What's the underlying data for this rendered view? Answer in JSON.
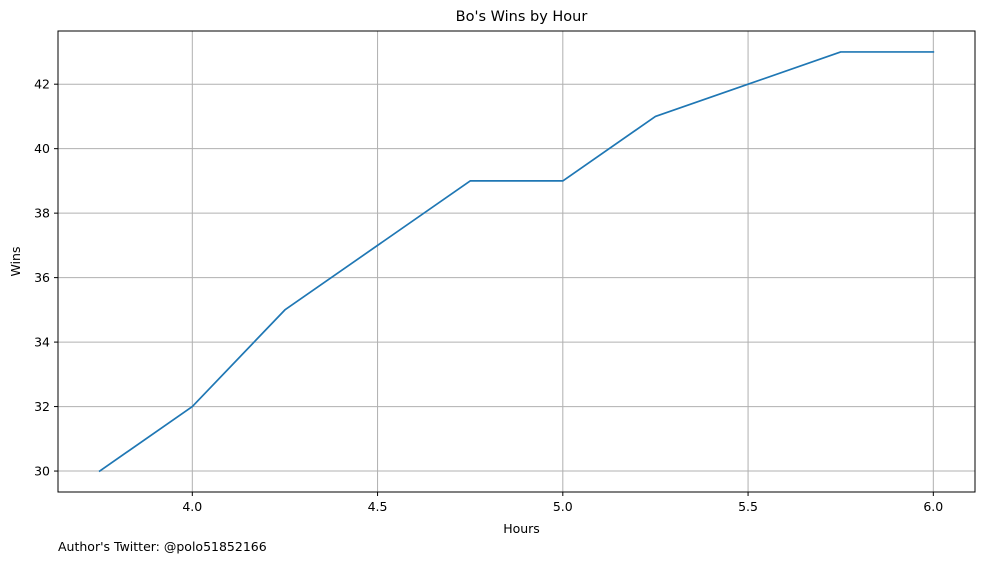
{
  "chart_data": {
    "type": "line",
    "title": "Bo's Wins by Hour",
    "xlabel": "Hours",
    "ylabel": "Wins",
    "x": [
      3.75,
      4.0,
      4.25,
      4.5,
      4.75,
      5.0,
      5.25,
      5.5,
      5.75,
      6.0
    ],
    "series": [
      {
        "values": [
          30,
          32,
          35,
          37,
          39,
          39,
          41,
          42,
          43,
          43
        ],
        "color": "#1f77b4"
      }
    ],
    "xlim": [
      3.6375,
      6.1125
    ],
    "ylim": [
      29.35,
      43.65
    ],
    "xticks": [
      4.0,
      4.5,
      5.0,
      5.5,
      6.0
    ],
    "xtick_labels": [
      "4.0",
      "4.5",
      "5.0",
      "5.5",
      "6.0"
    ],
    "yticks": [
      30,
      32,
      34,
      36,
      38,
      40,
      42
    ],
    "ytick_labels": [
      "30",
      "32",
      "34",
      "36",
      "38",
      "40",
      "42"
    ],
    "grid": true
  },
  "footer": {
    "credit": "Author's Twitter: @polo51852166"
  }
}
